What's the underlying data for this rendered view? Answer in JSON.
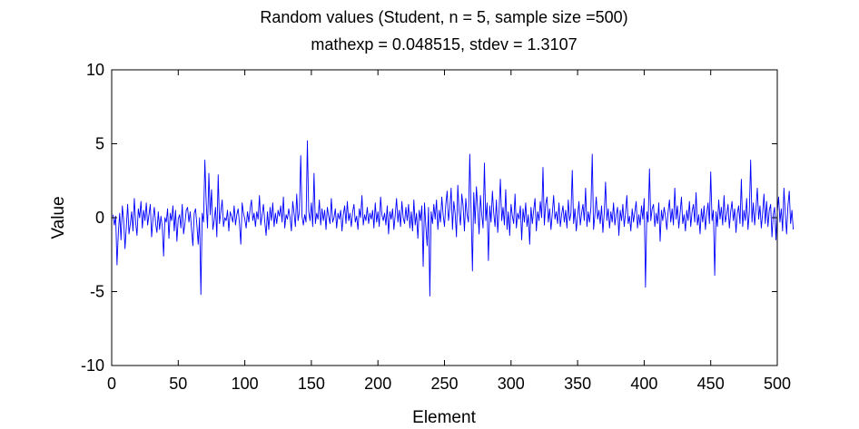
{
  "chart_data": {
    "type": "line",
    "title": "Random values (Student, n = 5, sample size =500)",
    "subtitle": "mathexp = 0.048515, stdev = 1.3107",
    "xlabel": "Element",
    "ylabel": "Value",
    "xlim": [
      0,
      500
    ],
    "ylim": [
      -10,
      10
    ],
    "xticks": [
      0,
      50,
      100,
      150,
      200,
      250,
      300,
      350,
      400,
      450,
      500
    ],
    "yticks": [
      -10,
      -5,
      0,
      5,
      10
    ],
    "xtick_labels": [
      "0",
      "50",
      "100",
      "150",
      "200",
      "250",
      "300",
      "350",
      "400",
      "450",
      "500"
    ],
    "ytick_labels": [
      "-10",
      "-5",
      "0",
      "5",
      "10"
    ],
    "grid": false,
    "line_color": "#0000ff",
    "series": [
      {
        "x_start": 1,
        "x_step": 1,
        "values": [
          0.2,
          -0.5,
          0.1,
          -3.2,
          -1.0,
          0.3,
          -1.5,
          0.8,
          -0.2,
          -2.1,
          -0.6,
          0.9,
          -1.1,
          -0.4,
          0.4,
          -0.9,
          1.3,
          -0.3,
          -1.2,
          0.6,
          0.0,
          1.1,
          -0.7,
          0.5,
          -0.2,
          1.0,
          -0.5,
          0.2,
          0.9,
          -1.3,
          -0.1,
          0.7,
          -0.4,
          -1.0,
          0.4,
          -0.8,
          0.1,
          -0.6,
          -2.6,
          0.0,
          -0.3,
          0.6,
          -1.4,
          0.3,
          -0.2,
          0.8,
          -0.9,
          0.5,
          -1.6,
          -0.1,
          0.2,
          -0.7,
          0.9,
          -1.1,
          -0.4,
          0.5,
          0.7,
          -0.3,
          0.4,
          -0.8,
          -1.9,
          0.3,
          0.6,
          -0.5,
          -1.8,
          0.0,
          -5.2,
          0.3,
          -0.3,
          3.9,
          1.0,
          -0.7,
          3.0,
          0.2,
          1.9,
          -0.8,
          -0.2,
          0.7,
          -1.3,
          2.9,
          -0.4,
          0.4,
          1.2,
          -0.6,
          0.0,
          -0.2,
          0.5,
          -0.9,
          0.4,
          0.1,
          -0.3,
          0.8,
          -0.5,
          0.2,
          0.6,
          -0.4,
          -1.8,
          1.0,
          0.3,
          -0.1,
          -0.7,
          0.4,
          -0.3,
          0.6,
          1.2,
          -0.2,
          0.3,
          -0.6,
          0.4,
          -0.1,
          1.5,
          -0.5,
          0.2,
          0.9,
          -0.3,
          -1.2,
          0.4,
          -0.8,
          0.7,
          -0.2,
          1.0,
          -0.6,
          0.3,
          -0.4,
          0.5,
          0.1,
          0.8,
          -0.3,
          1.4,
          -0.7,
          0.2,
          -0.1,
          0.6,
          0.0,
          -0.9,
          1.1,
          0.3,
          -0.6,
          1.6,
          -0.2,
          0.4,
          4.2,
          0.1,
          -0.5,
          0.2,
          -0.3,
          5.2,
          0.4,
          -0.2,
          1.0,
          -0.6,
          3.0,
          -0.4,
          0.3,
          -0.1,
          1.2,
          -0.5,
          0.6,
          -0.2,
          0.5,
          -0.8,
          0.7,
          0.1,
          -0.4,
          1.3,
          -0.3,
          0.0,
          0.6,
          -0.7,
          0.3,
          -0.1,
          0.5,
          -0.9,
          0.2,
          0.8,
          -0.4,
          1.1,
          -0.2,
          0.3,
          -0.6,
          0.4,
          0.9,
          -0.3,
          0.1,
          -0.8,
          0.6,
          0.0,
          1.5,
          -0.5,
          0.2,
          -0.2,
          0.7,
          -0.4,
          0.3,
          -0.1,
          0.5,
          -0.7,
          1.0,
          -0.3,
          0.4,
          -0.6,
          1.4,
          0.2,
          -0.2,
          0.3,
          -0.5,
          0.8,
          -1.1,
          0.4,
          -0.1,
          0.6,
          -0.8,
          0.2,
          1.3,
          -0.3,
          0.5,
          -0.6,
          1.1,
          0.0,
          -0.4,
          0.7,
          -0.2,
          0.9,
          -0.7,
          0.4,
          -0.9,
          1.2,
          -0.5,
          0.3,
          -1.4,
          0.5,
          -0.2,
          0.8,
          -3.3,
          1.0,
          -0.6,
          -1.9,
          0.7,
          -5.3,
          0.4,
          -0.4,
          0.9,
          -0.1,
          1.2,
          -0.8,
          0.5,
          -0.3,
          1.4,
          0.2,
          -0.6,
          0.9,
          1.8,
          -0.2,
          0.6,
          2.0,
          -0.8,
          1.1,
          0.3,
          -1.3,
          2.2,
          0.4,
          -0.5,
          1.6,
          0.8,
          -0.9,
          1.3,
          0.2,
          -0.3,
          4.3,
          0.5,
          -3.6,
          1.7,
          -0.4,
          2.1,
          0.6,
          -1.1,
          1.5,
          0.2,
          -0.7,
          3.7,
          -0.2,
          1.0,
          -2.9,
          0.8,
          -0.3,
          1.8,
          0.3,
          -0.6,
          1.2,
          -1.0,
          0.5,
          2.6,
          -0.2,
          0.7,
          -0.5,
          1.9,
          -0.8,
          0.4,
          -1.2,
          0.9,
          0.1,
          -0.4,
          1.6,
          -0.7,
          0.3,
          -0.1,
          0.8,
          -1.5,
          0.6,
          -0.3,
          1.0,
          -0.6,
          0.2,
          -1.8,
          0.7,
          -0.4,
          0.5,
          1.3,
          -0.9,
          0.4,
          -0.2,
          1.1,
          0.0,
          3.4,
          -0.5,
          0.9,
          1.4,
          -0.3,
          0.6,
          -0.8,
          0.3,
          1.5,
          -0.1,
          0.4,
          -0.4,
          1.0,
          -0.6,
          0.2,
          0.8,
          -0.3,
          0.5,
          -0.7,
          1.2,
          -0.2,
          0.3,
          3.2,
          -0.4,
          0.6,
          -0.9,
          0.1,
          1.1,
          -0.5,
          0.3,
          0.9,
          -0.2,
          2.0,
          -0.6,
          0.4,
          -0.3,
          0.7,
          4.3,
          -0.8,
          0.2,
          1.4,
          -0.1,
          0.5,
          -0.4,
          0.8,
          -1.0,
          0.3,
          2.4,
          -0.2,
          0.6,
          -0.7,
          0.4,
          -0.3,
          1.0,
          -0.5,
          0.2,
          0.7,
          -1.2,
          0.5,
          -0.2,
          0.9,
          -0.6,
          0.3,
          1.5,
          -0.4,
          0.1,
          -0.9,
          0.6,
          -0.3,
          0.4,
          1.1,
          -0.7,
          0.2,
          -0.5,
          0.8,
          -0.1,
          1.3,
          -4.7,
          0.4,
          -0.3,
          3.3,
          -0.2,
          0.6,
          0.9,
          -0.6,
          0.3,
          -0.4,
          1.0,
          -1.6,
          0.5,
          -0.2,
          0.7,
          0.1,
          -0.8,
          0.4,
          1.2,
          -0.3,
          0.6,
          -0.5,
          2.0,
          -0.1,
          0.8,
          -0.7,
          0.3,
          1.4,
          -0.4,
          0.2,
          -0.9,
          0.5,
          -0.2,
          1.1,
          -0.6,
          0.4,
          0.9,
          -0.3,
          1.7,
          -0.5,
          0.2,
          -1.1,
          0.6,
          -0.3,
          0.8,
          -0.8,
          0.3,
          1.0,
          -0.4,
          3.1,
          -0.2,
          0.5,
          -3.9,
          0.4,
          -0.6,
          1.2,
          -0.1,
          0.7,
          -0.5,
          1.5,
          -0.3,
          0.2,
          0.9,
          -0.7,
          0.4,
          1.1,
          -0.2,
          0.6,
          -1.0,
          0.3,
          0.8,
          -0.4,
          2.6,
          -0.6,
          0.5,
          -0.2,
          1.3,
          -0.8,
          0.4,
          3.9,
          -0.3,
          1.0,
          -0.5,
          0.6,
          2.0,
          -0.1,
          0.8,
          -0.7,
          0.3,
          1.6,
          -0.4,
          1.1,
          -0.6,
          0.5,
          0.9,
          -1.3,
          0.2,
          0.7,
          -1.5,
          0.4,
          1.4,
          -0.3,
          0.6,
          -0.9,
          2.0,
          0.3,
          -1.1,
          0.8,
          1.8,
          -0.4,
          0.5,
          -0.8
        ]
      }
    ]
  }
}
